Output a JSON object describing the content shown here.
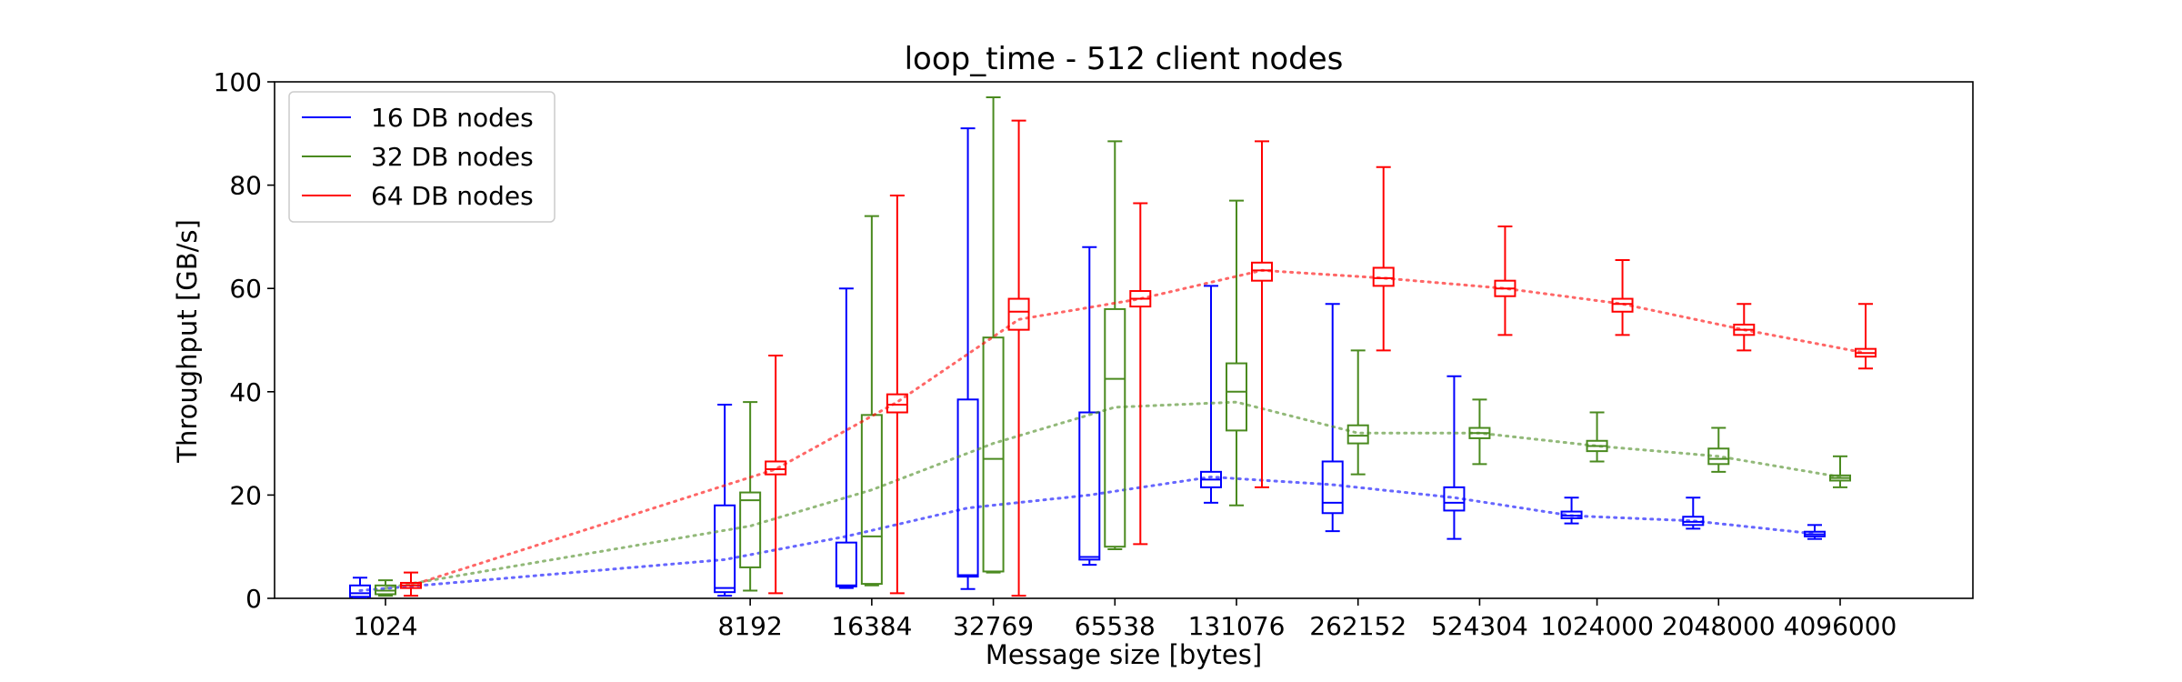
{
  "chart_data": {
    "type": "box",
    "title": "loop_time - 512 client nodes",
    "xlabel": "Message size [bytes]",
    "ylabel": "Throughput [GB/s]",
    "ylim": [
      0,
      100
    ],
    "yticks": [
      0,
      20,
      40,
      60,
      80,
      100
    ],
    "categories": [
      "1024",
      "8192",
      "16384",
      "32769",
      "65538",
      "131076",
      "262152",
      "524304",
      "1024000",
      "2048000",
      "4096000"
    ],
    "legend_position": "upper-left",
    "grid": false,
    "series": [
      {
        "name": "16 DB nodes",
        "color": "#0000ff",
        "boxes": [
          {
            "whislo": 0.2,
            "q1": 0.3,
            "med": 1.0,
            "q3": 2.5,
            "whishi": 4.0,
            "mean": 1.5
          },
          {
            "whislo": 0.5,
            "q1": 1.2,
            "med": 2.0,
            "q3": 18.0,
            "whishi": 37.5,
            "mean": 7.5
          },
          {
            "whislo": 2.0,
            "q1": 2.3,
            "med": 2.5,
            "q3": 10.8,
            "whishi": 60.0,
            "mean": 12.0
          },
          {
            "whislo": 1.8,
            "q1": 4.2,
            "med": 4.5,
            "q3": 38.5,
            "whishi": 91.0,
            "mean": 17.5
          },
          {
            "whislo": 6.5,
            "q1": 7.5,
            "med": 8.0,
            "q3": 36.0,
            "whishi": 68.0,
            "mean": 20.0
          },
          {
            "whislo": 18.5,
            "q1": 21.5,
            "med": 23.0,
            "q3": 24.5,
            "whishi": 60.5,
            "mean": 23.5
          },
          {
            "whislo": 13.0,
            "q1": 16.5,
            "med": 18.5,
            "q3": 26.5,
            "whishi": 57.0,
            "mean": 22.0
          },
          {
            "whislo": 11.5,
            "q1": 17.0,
            "med": 18.5,
            "q3": 21.5,
            "whishi": 43.0,
            "mean": 19.5
          },
          {
            "whislo": 14.5,
            "q1": 15.5,
            "med": 16.0,
            "q3": 16.8,
            "whishi": 19.5,
            "mean": 16.0
          },
          {
            "whislo": 13.5,
            "q1": 14.2,
            "med": 14.8,
            "q3": 15.8,
            "whishi": 19.5,
            "mean": 15.0
          },
          {
            "whislo": 11.5,
            "q1": 12.0,
            "med": 12.4,
            "q3": 12.9,
            "whishi": 14.2,
            "mean": 12.5
          }
        ]
      },
      {
        "name": "32 DB nodes",
        "color": "#4a8a1f",
        "boxes": [
          {
            "whislo": 0.5,
            "q1": 0.8,
            "med": 1.5,
            "q3": 2.5,
            "whishi": 3.5,
            "mean": 2.0
          },
          {
            "whislo": 1.5,
            "q1": 6.0,
            "med": 19.0,
            "q3": 20.5,
            "whishi": 38.0,
            "mean": 14.0
          },
          {
            "whislo": 2.5,
            "q1": 2.8,
            "med": 12.0,
            "q3": 35.5,
            "whishi": 74.0,
            "mean": 21.0
          },
          {
            "whislo": 5.0,
            "q1": 5.2,
            "med": 27.0,
            "q3": 50.5,
            "whishi": 97.0,
            "mean": 30.0
          },
          {
            "whislo": 9.5,
            "q1": 10.0,
            "med": 42.5,
            "q3": 56.0,
            "whishi": 88.5,
            "mean": 37.0
          },
          {
            "whislo": 18.0,
            "q1": 32.5,
            "med": 40.0,
            "q3": 45.5,
            "whishi": 77.0,
            "mean": 38.0
          },
          {
            "whislo": 24.0,
            "q1": 30.0,
            "med": 31.5,
            "q3": 33.5,
            "whishi": 48.0,
            "mean": 32.0
          },
          {
            "whislo": 26.0,
            "q1": 31.0,
            "med": 32.0,
            "q3": 33.0,
            "whishi": 38.5,
            "mean": 32.0
          },
          {
            "whislo": 26.5,
            "q1": 28.5,
            "med": 29.5,
            "q3": 30.5,
            "whishi": 36.0,
            "mean": 29.5
          },
          {
            "whislo": 24.5,
            "q1": 26.0,
            "med": 27.0,
            "q3": 29.0,
            "whishi": 33.0,
            "mean": 27.5
          },
          {
            "whislo": 21.5,
            "q1": 22.8,
            "med": 23.3,
            "q3": 23.8,
            "whishi": 27.5,
            "mean": 23.5
          }
        ]
      },
      {
        "name": "64 DB nodes",
        "color": "#ff0000",
        "boxes": [
          {
            "whislo": 0.5,
            "q1": 2.0,
            "med": 2.5,
            "q3": 3.0,
            "whishi": 5.0,
            "mean": 2.5
          },
          {
            "whislo": 1.0,
            "q1": 24.0,
            "med": 25.0,
            "q3": 26.5,
            "whishi": 47.0,
            "mean": 25.0
          },
          {
            "whislo": 1.0,
            "q1": 36.0,
            "med": 37.5,
            "q3": 39.5,
            "whishi": 78.0,
            "mean": 38.0
          },
          {
            "whislo": 0.5,
            "q1": 52.0,
            "med": 55.5,
            "q3": 58.0,
            "whishi": 92.5,
            "mean": 54.0
          },
          {
            "whislo": 10.5,
            "q1": 56.5,
            "med": 58.0,
            "q3": 59.5,
            "whishi": 76.5,
            "mean": 58.0
          },
          {
            "whislo": 21.5,
            "q1": 61.5,
            "med": 63.5,
            "q3": 65.0,
            "whishi": 88.5,
            "mean": 63.5
          },
          {
            "whislo": 48.0,
            "q1": 60.5,
            "med": 62.0,
            "q3": 64.0,
            "whishi": 83.5,
            "mean": 62.0
          },
          {
            "whislo": 51.0,
            "q1": 58.5,
            "med": 60.0,
            "q3": 61.5,
            "whishi": 72.0,
            "mean": 60.0
          },
          {
            "whislo": 51.0,
            "q1": 55.5,
            "med": 57.0,
            "q3": 58.0,
            "whishi": 65.5,
            "mean": 57.0
          },
          {
            "whislo": 48.0,
            "q1": 51.0,
            "med": 52.0,
            "q3": 53.0,
            "whishi": 57.0,
            "mean": 52.0
          },
          {
            "whislo": 44.5,
            "q1": 46.8,
            "med": 47.5,
            "q3": 48.3,
            "whishi": 57.0,
            "mean": 47.5
          }
        ]
      }
    ]
  }
}
